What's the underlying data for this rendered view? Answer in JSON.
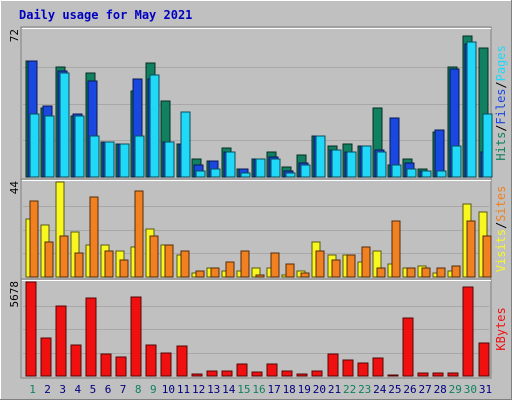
{
  "title": "Daily usage for May 2021",
  "colors": {
    "background": "#c0c0c0",
    "title": "#0000c0",
    "hits": "#108060",
    "files": "#1848e0",
    "pages": "#20d8f8",
    "visits": "#f8f820",
    "sites": "#f08020",
    "kbytes": "#f01010",
    "weekend_day": "#108060",
    "weekday_day": "#000080"
  },
  "chart_data": [
    {
      "type": "bar",
      "name": "hits-files-pages",
      "ymax": 72,
      "ymax_label": "72",
      "legend": [
        "Pages",
        "Files",
        "Hits"
      ],
      "categories": [
        "1",
        "2",
        "3",
        "4",
        "5",
        "6",
        "7",
        "8",
        "9",
        "10",
        "11",
        "12",
        "13",
        "14",
        "15",
        "16",
        "17",
        "18",
        "19",
        "20",
        "21",
        "22",
        "23",
        "24",
        "25",
        "26",
        "27",
        "28",
        "29",
        "30",
        "31"
      ],
      "weekend_days": [
        1,
        8,
        9,
        15,
        16,
        22,
        23,
        29,
        30
      ],
      "series": [
        {
          "name": "Hits",
          "values": [
            57,
            34,
            54,
            30,
            51,
            17,
            16,
            42,
            56,
            37,
            16,
            9,
            8,
            14,
            4,
            9,
            12,
            5,
            11,
            20,
            15,
            16,
            15,
            34,
            6,
            9,
            4,
            22,
            54,
            69,
            63
          ]
        },
        {
          "name": "Files",
          "values": [
            57,
            35,
            52,
            31,
            47,
            17,
            16,
            48,
            48,
            17,
            16,
            6,
            8,
            12,
            4,
            9,
            10,
            3,
            7,
            20,
            13,
            12,
            15,
            13,
            29,
            7,
            3,
            23,
            53,
            65,
            12
          ]
        },
        {
          "name": "Pages",
          "values": [
            31,
            30,
            51,
            30,
            20,
            17,
            16,
            20,
            50,
            17,
            32,
            3,
            4,
            12,
            2,
            9,
            9,
            2,
            6,
            20,
            13,
            12,
            15,
            12,
            6,
            4,
            3,
            3,
            15,
            66,
            31
          ]
        }
      ]
    },
    {
      "type": "bar",
      "name": "visits-sites",
      "ymax": 44,
      "ymax_label": "44",
      "legend": [
        "Sites",
        "Visits"
      ],
      "categories": [
        "1",
        "2",
        "3",
        "4",
        "5",
        "6",
        "7",
        "8",
        "9",
        "10",
        "11",
        "12",
        "13",
        "14",
        "15",
        "16",
        "17",
        "18",
        "19",
        "20",
        "21",
        "22",
        "23",
        "24",
        "25",
        "26",
        "27",
        "28",
        "29",
        "30",
        "31"
      ],
      "series": [
        {
          "name": "Visits",
          "values": [
            27,
            24,
            44,
            21,
            15,
            15,
            12,
            14,
            22,
            15,
            10,
            2,
            4,
            3,
            3,
            4,
            4,
            1,
            3,
            16,
            10,
            10,
            7,
            12,
            6,
            4,
            5,
            2,
            3,
            34,
            30
          ]
        },
        {
          "name": "Sites",
          "values": [
            35,
            16,
            19,
            11,
            37,
            12,
            8,
            40,
            19,
            15,
            12,
            3,
            4,
            7,
            12,
            1,
            11,
            6,
            2,
            12,
            8,
            10,
            14,
            4,
            26,
            4,
            4,
            4,
            5,
            26,
            19
          ]
        }
      ]
    },
    {
      "type": "bar",
      "name": "kbytes",
      "ymax": 5678,
      "ymax_label": "5678",
      "legend": [
        "KBytes"
      ],
      "categories": [
        "1",
        "2",
        "3",
        "4",
        "5",
        "6",
        "7",
        "8",
        "9",
        "10",
        "11",
        "12",
        "13",
        "14",
        "15",
        "16",
        "17",
        "18",
        "19",
        "20",
        "21",
        "22",
        "23",
        "24",
        "25",
        "26",
        "27",
        "28",
        "29",
        "30",
        "31"
      ],
      "series": [
        {
          "name": "KBytes",
          "values": [
            5678,
            2300,
            4200,
            1900,
            4700,
            1300,
            1150,
            4800,
            1900,
            1400,
            1800,
            130,
            300,
            300,
            700,
            240,
            700,
            300,
            100,
            300,
            1300,
            950,
            800,
            1100,
            50,
            3500,
            190,
            190,
            200,
            5400,
            2000
          ]
        }
      ]
    }
  ]
}
